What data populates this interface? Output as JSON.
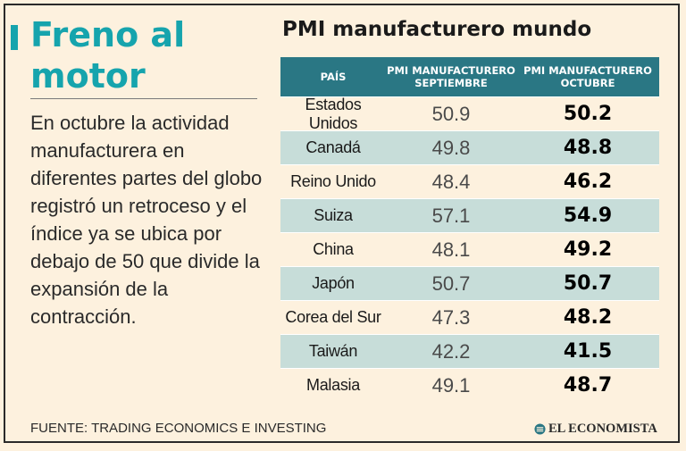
{
  "headline": "Freno al motor",
  "description": "En octubre la actividad manufacturera en diferentes partes del globo registró un retroceso y el índice ya se ubica por debajo de 50 que divide la expansión de la contracción.",
  "table": {
    "title": "PMI manufacturero mundo",
    "headers": [
      "PAÍS",
      "PMI MANUFACTURERO SEPTIEMBRE",
      "PMI MANUFACTURERO OCTUBRE"
    ],
    "rows": [
      {
        "country": "Estados Unidos",
        "september": "50.9",
        "october": "50.2"
      },
      {
        "country": "Canadá",
        "september": "49.8",
        "october": "48.8"
      },
      {
        "country": "Reino Unido",
        "september": "48.4",
        "october": "46.2"
      },
      {
        "country": "Suiza",
        "september": "57.1",
        "october": "54.9"
      },
      {
        "country": "China",
        "september": "48.1",
        "october": "49.2"
      },
      {
        "country": "Japón",
        "september": "50.7",
        "october": "50.7"
      },
      {
        "country": "Corea del Sur",
        "september": "47.3",
        "october": "48.2"
      },
      {
        "country": "Taiwán",
        "september": "42.2",
        "october": "41.5"
      },
      {
        "country": "Malasia",
        "september": "49.1",
        "october": "48.7"
      }
    ]
  },
  "source": "FUENTE: TRADING ECONOMICS E INVESTING",
  "brand": {
    "name": "EL ECONOMISTA",
    "logo_icon": "el-economista-logo"
  },
  "colors": {
    "accent": "#16a4ad",
    "header_bg": "#2a7784",
    "stripe": "#c7ddd9",
    "background": "#fdf1de"
  }
}
